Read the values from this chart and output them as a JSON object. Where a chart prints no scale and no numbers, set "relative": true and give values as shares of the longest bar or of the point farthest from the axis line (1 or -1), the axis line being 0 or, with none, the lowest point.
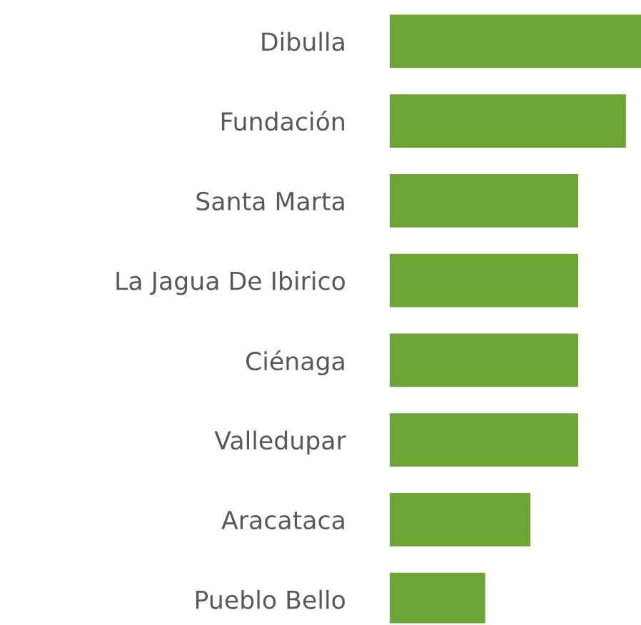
{
  "chart_data": {
    "type": "bar",
    "orientation": "horizontal",
    "relative": true,
    "categories": [
      "Dibulla",
      "Fundación",
      "Santa Marta",
      "La Jagua De Ibirico",
      "Ciénaga",
      "Valledupar",
      "Aracataca",
      "Pueblo Bello"
    ],
    "values": [
      1,
      0.94,
      0.75,
      0.75,
      0.75,
      0.75,
      0.56,
      0.38
    ],
    "color": "#6ca436",
    "grid": false,
    "legend": false
  }
}
